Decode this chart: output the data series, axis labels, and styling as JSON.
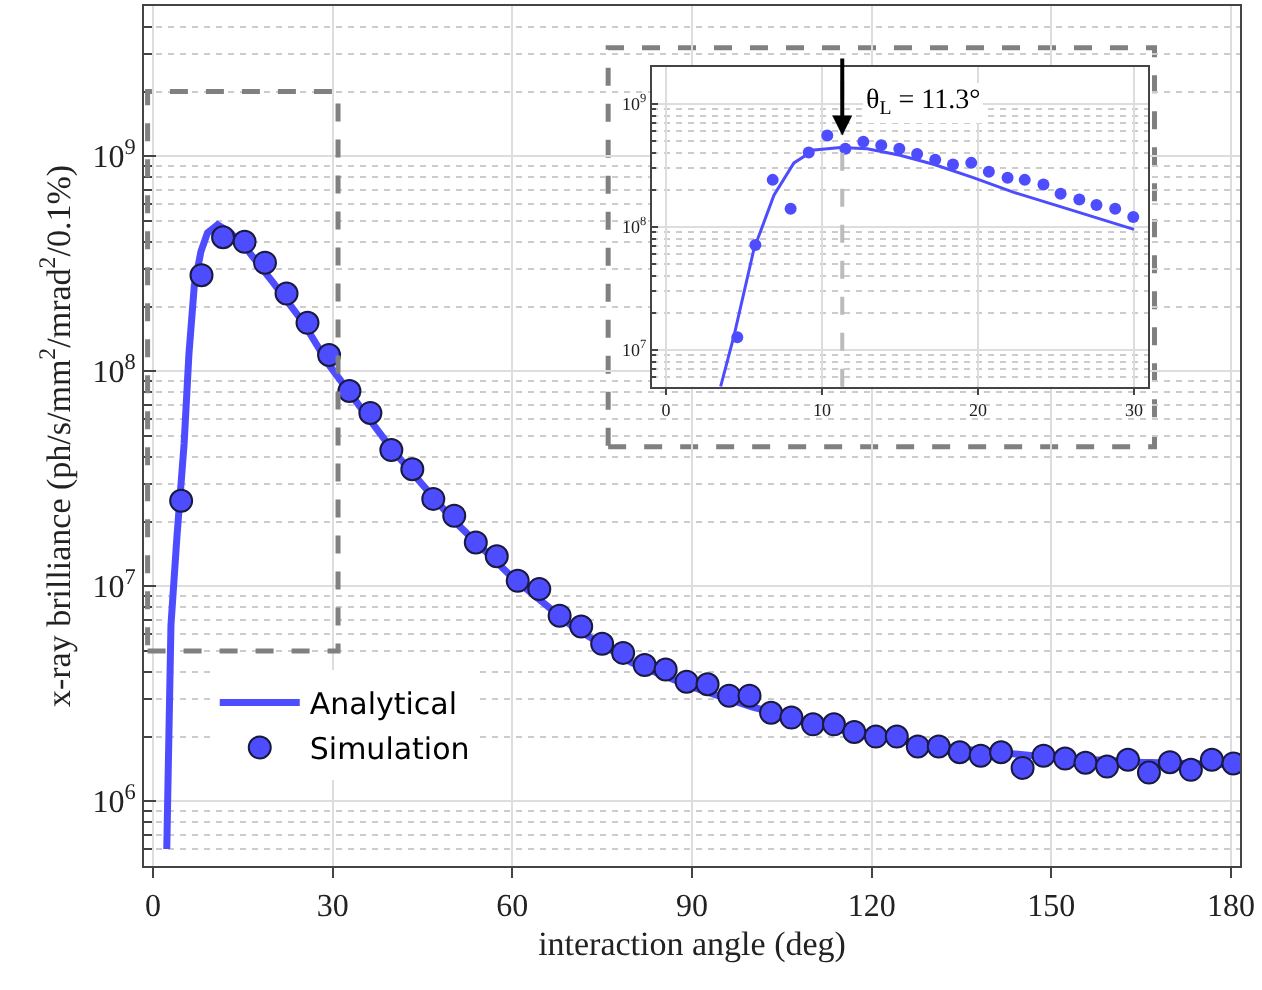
{
  "chart_data": [
    {
      "type": "line",
      "xlabel": "interaction angle (deg)",
      "ylabel": "x-ray brilliance (ph/s/mm$^{2}$/mrad$^{2}$/0.1%)",
      "log": "y",
      "grid": true,
      "legend": "bottom left",
      "xlim": [
        -1.5,
        181.5
      ],
      "xticks": [
        0,
        30,
        60,
        90,
        120,
        150,
        180
      ],
      "ylim": [
        500000,
        5000000000
      ],
      "yticks": [
        {
          "value": 1000000,
          "label": "10$^{6}$"
        },
        {
          "value": 10000000,
          "label": "10$^{7}$"
        },
        {
          "value": 100000000,
          "label": "10$^{8}$"
        },
        {
          "value": 1000000000,
          "label": "10$^{9}$"
        }
      ],
      "series": [
        {
          "name": "Analytical",
          "color": "#4d4dff",
          "x": [
            2.3,
            3,
            4,
            5.2,
            6,
            6.9,
            8,
            9.1,
            10.8,
            13,
            16,
            20,
            25,
            29.4,
            35,
            40,
            50,
            60,
            70,
            80,
            90,
            100,
            110,
            120,
            135,
            150,
            165,
            180
          ],
          "values": [
            600000,
            6600000,
            17000000,
            46000000,
            120000000,
            250000000,
            360000000,
            440000000,
            480000000,
            440000000,
            360000000,
            260000000,
            170000000,
            107000000,
            66000000,
            43000000,
            20500000,
            11000000,
            6500000,
            4400000,
            3400000,
            2750000,
            2300000,
            2000000,
            1750000,
            1600000,
            1520000,
            1480000
          ]
        },
        {
          "name": "Simulation",
          "type": "scatter",
          "marker": "circle",
          "color": "#4d4dff",
          "x": [
            4.7,
            8.1,
            11.7,
            15.3,
            18.7,
            22.3,
            25.8,
            29.4,
            32.8,
            36.3,
            39.8,
            43.3,
            46.8,
            50.3,
            53.9,
            57.4,
            60.9,
            64.5,
            67.9,
            71.5,
            75.0,
            78.5,
            82.1,
            85.6,
            89.1,
            92.6,
            96.2,
            99.6,
            103.2,
            106.6,
            110.2,
            113.7,
            117.1,
            120.7,
            124.2,
            127.7,
            131.2,
            134.7,
            138.2,
            141.6,
            145.2,
            148.7,
            152.3,
            155.7,
            159.3,
            162.8,
            166.3,
            169.8,
            173.3,
            176.8,
            180.4
          ],
          "values": [
            25000000,
            280000000,
            420000000,
            400000000,
            320000000,
            230000000,
            168000000,
            119000000,
            81000000,
            64000000,
            43000000,
            35000000,
            25500000,
            21300000,
            16000000,
            13800000,
            10600000,
            9700000,
            7300000,
            6500000,
            5400000,
            4900000,
            4300000,
            4100000,
            3600000,
            3500000,
            3100000,
            3100000,
            2580000,
            2450000,
            2280000,
            2280000,
            2100000,
            2000000,
            2000000,
            1800000,
            1800000,
            1690000,
            1630000,
            1690000,
            1430000,
            1630000,
            1580000,
            1510000,
            1450000,
            1560000,
            1360000,
            1520000,
            1400000,
            1560000,
            1500000
          ]
        }
      ]
    },
    {
      "type": "line",
      "log": "y",
      "grid": true,
      "xlim": [
        -0.9,
        30.9
      ],
      "xticks": [
        0,
        10,
        20,
        30
      ],
      "ylim": [
        5000000,
        2000000000
      ],
      "yticks": [
        {
          "value": 10000000,
          "label": "10$^{7}$"
        },
        {
          "value": 100000000,
          "label": "10$^{8}$"
        },
        {
          "value": 1000000000,
          "label": "10$^{9}$"
        }
      ],
      "ref_lines": [
        {
          "axis": "x",
          "value": 11.3,
          "color": "#bbbbbb",
          "line_style": "dashed"
        }
      ],
      "annotations": [
        {
          "text": "θ$_{L}$ = 11.3°",
          "x": 11.3,
          "y": 550000000
        }
      ],
      "series": [
        {
          "color": "#4d4dff",
          "x": [
            3.5,
            4.36,
            5.64,
            6.92,
            8.2,
            9.5,
            11.2,
            12.9,
            15,
            17.2,
            19.7,
            22.3,
            25.7,
            30
          ],
          "values": [
            5000000,
            13000000,
            66000000,
            180000000,
            330000000,
            420000000,
            440000000,
            430000000,
            380000000,
            320000000,
            250000000,
            190000000,
            140000000,
            95000000
          ]
        },
        {
          "type": "scatter",
          "marker": "circle",
          "color": "#4d4dff",
          "x": [
            4.57,
            5.73,
            6.84,
            7.99,
            9.15,
            10.34,
            11.5,
            12.65,
            13.8,
            14.96,
            16.1,
            17.26,
            18.4,
            19.57,
            20.7,
            21.9,
            23.0,
            24.2,
            25.3,
            26.5,
            27.6,
            28.8,
            29.96
          ],
          "values": [
            12600000,
            71000000,
            240000000,
            140000000,
            400000000,
            550000000,
            430000000,
            490000000,
            460000000,
            430000000,
            390000000,
            350000000,
            320000000,
            330000000,
            280000000,
            250000000,
            240000000,
            220000000,
            185000000,
            166000000,
            150000000,
            140000000,
            120000000
          ]
        }
      ]
    }
  ]
}
